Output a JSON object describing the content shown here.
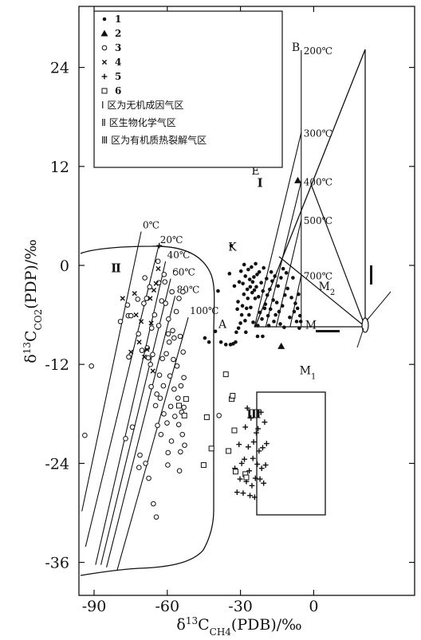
{
  "chart_data": {
    "type": "scatter",
    "xlabel": "δ13CCH4(PDB)/‰",
    "ylabel": "δ13CCO2(PDP)/‰",
    "x_ticks": [
      {
        "value": -90,
        "label": "-90"
      },
      {
        "value": -60,
        "label": "-60"
      },
      {
        "value": -30,
        "label": "-30"
      },
      {
        "value": 0,
        "label": "0"
      }
    ],
    "y_ticks": [
      {
        "value": 24,
        "label": "24"
      },
      {
        "value": 12,
        "label": "12"
      },
      {
        "value": 0,
        "label": "0"
      },
      {
        "value": -12,
        "label": "-12"
      },
      {
        "value": -24,
        "label": "-24"
      },
      {
        "value": -36,
        "label": "-36"
      }
    ],
    "xlim": [
      -95,
      5
    ],
    "ylim": [
      -38,
      28
    ],
    "legend": [
      {
        "num": "1",
        "marker": "dot",
        "text": ""
      },
      {
        "num": "2",
        "marker": "triangle",
        "text": ""
      },
      {
        "num": "3",
        "marker": "circle",
        "text": ""
      },
      {
        "num": "4",
        "marker": "x",
        "text": ""
      },
      {
        "num": "5",
        "marker": "plus",
        "text": ""
      },
      {
        "num": "6",
        "marker": "square",
        "text": ""
      },
      {
        "num": "",
        "marker": "region-1",
        "text": "Ⅰ 区为无机成因气区"
      },
      {
        "num": "",
        "marker": "region-2",
        "text": "Ⅱ 区生物化学气区"
      },
      {
        "num": "",
        "marker": "region-3",
        "text": "Ⅲ 区为有机质热裂解气区"
      }
    ],
    "region_labels": [
      {
        "text": "Ⅰ",
        "x": -22.0,
        "y": 9.5
      },
      {
        "text": "Ⅱ",
        "x": -81.0,
        "y": -0.8
      },
      {
        "text": "Ⅲ",
        "x": -24.5,
        "y": -18.5
      }
    ],
    "key_points": [
      {
        "name": "A",
        "label": "A",
        "x": -39.0,
        "y": -7.6
      },
      {
        "name": "K",
        "label": "K",
        "x": -35.0,
        "y": 1.8
      },
      {
        "name": "E",
        "label": "E",
        "x": -25.5,
        "y": 11.0
      },
      {
        "name": "B",
        "label": "B",
        "x": -9.0,
        "y": 26.0
      },
      {
        "name": "M",
        "label": "M",
        "x": -3.5,
        "y": -7.7
      },
      {
        "name": "M1",
        "label": "M1",
        "x": -5.8,
        "y": -13.2
      },
      {
        "name": "M2",
        "label": "M2",
        "x": 2.0,
        "y": -3.0
      }
    ],
    "inorganic_isotherms": [
      {
        "label": "200℃",
        "x1": -5.1,
        "y1": -7.5,
        "x2": -5.1,
        "y2": 26.1
      },
      {
        "label": "300℃",
        "x1": -24.3,
        "y1": -7.5,
        "x2": -5.1,
        "y2": 16.1
      },
      {
        "label": "400℃",
        "x1": -19.7,
        "y1": -7.5,
        "x2": -5.1,
        "y2": 10.2
      },
      {
        "label": "500℃",
        "x1": -15.4,
        "y1": -7.5,
        "x2": -5.1,
        "y2": 5.5
      },
      {
        "label": "700℃",
        "x1": -9.7,
        "y1": -7.5,
        "x2": -5.1,
        "y2": -1.2
      }
    ],
    "biogenic_isotherms": [
      {
        "label": "0℃",
        "x1": -95.0,
        "y1": -29.8,
        "x2": -70.7,
        "y2": 4.1
      },
      {
        "label": "20℃",
        "x1": -93.5,
        "y1": -34.1,
        "x2": -63.6,
        "y2": 2.3
      },
      {
        "label": "40℃",
        "x1": -89.4,
        "y1": -36.3,
        "x2": -60.7,
        "y2": 0.5
      },
      {
        "label": "60℃",
        "x1": -87.2,
        "y1": -36.3,
        "x2": -58.6,
        "y2": -1.6
      },
      {
        "label": "80℃",
        "x1": -84.9,
        "y1": -36.6,
        "x2": -56.8,
        "y2": -3.7
      },
      {
        "label": "100℃",
        "x1": -80.6,
        "y1": -37.0,
        "x2": -51.4,
        "y2": -6.3
      }
    ],
    "series": [
      {
        "marker": "dot",
        "points": [
          [
            -44.6,
            -8.8
          ],
          [
            -42.9,
            -9.3
          ],
          [
            -40.3,
            -8.0
          ],
          [
            -38.0,
            -9.3
          ],
          [
            -36.0,
            -9.6
          ],
          [
            -34.1,
            -9.6
          ],
          [
            -33.0,
            -9.5
          ],
          [
            -32.0,
            -9.3
          ],
          [
            -31.7,
            -8.1
          ],
          [
            -30.8,
            -7.6
          ],
          [
            -30.0,
            -7.0
          ],
          [
            -29.5,
            -6.0
          ],
          [
            -29.2,
            -4.9
          ],
          [
            -28.6,
            -3.5
          ],
          [
            -28.1,
            -6.7
          ],
          [
            -27.5,
            -5.2
          ],
          [
            -27.0,
            -4.0
          ],
          [
            -26.5,
            -6.0
          ],
          [
            -26.0,
            -2.6
          ],
          [
            -25.8,
            -5.1
          ],
          [
            -25.2,
            -3.3
          ],
          [
            -24.8,
            -6.9
          ],
          [
            -24.5,
            -1.4
          ],
          [
            -24.0,
            -4.0
          ],
          [
            -23.5,
            -2.6
          ],
          [
            -22.9,
            -7.3
          ],
          [
            -22.3,
            -0.8
          ],
          [
            -21.5,
            -2.1
          ],
          [
            -20.8,
            -3.1
          ],
          [
            -20.1,
            -5.2
          ],
          [
            -19.3,
            -1.6
          ],
          [
            -18.7,
            -6.1
          ],
          [
            -18.0,
            -2.9
          ],
          [
            -17.4,
            -0.8
          ],
          [
            -16.6,
            -4.2
          ],
          [
            -15.6,
            -6.0
          ],
          [
            -14.6,
            -2.5
          ],
          [
            -13.7,
            -7.1
          ],
          [
            -12.5,
            -0.4
          ],
          [
            -11.8,
            -3.6
          ],
          [
            -34.5,
            -1.0
          ],
          [
            -32.5,
            -2.5
          ],
          [
            -31.0,
            -4.4
          ],
          [
            -30.5,
            -2.0
          ],
          [
            -29.8,
            -0.7
          ],
          [
            -29.0,
            -2.2
          ],
          [
            -28.5,
            0.1
          ],
          [
            -28.0,
            -1.3
          ],
          [
            -27.2,
            -2.9
          ],
          [
            -26.8,
            -0.5
          ],
          [
            -26.2,
            -1.7
          ],
          [
            -25.5,
            -0.2
          ],
          [
            -25.0,
            -2.0
          ],
          [
            -24.3,
            -3.0
          ],
          [
            -23.8,
            0.2
          ],
          [
            -23.2,
            -1.1
          ],
          [
            -22.6,
            -3.8
          ],
          [
            -22.0,
            -5.7
          ],
          [
            -21.2,
            -6.5
          ],
          [
            -20.5,
            -0.3
          ],
          [
            -19.8,
            -4.7
          ],
          [
            -19.0,
            -3.6
          ],
          [
            -18.4,
            -7.3
          ],
          [
            -17.7,
            -5.3
          ],
          [
            -17.0,
            -1.9
          ],
          [
            -16.3,
            -6.8
          ],
          [
            -15.9,
            -1.3
          ],
          [
            -15.1,
            -4.5
          ],
          [
            -14.2,
            -5.6
          ],
          [
            -13.4,
            -1.5
          ],
          [
            -12.8,
            -4.9
          ],
          [
            -12.1,
            -7.5
          ],
          [
            -11.2,
            -0.9
          ],
          [
            -10.7,
            -2.8
          ],
          [
            -9.8,
            -6.3
          ],
          [
            -9.1,
            -3.9
          ],
          [
            -8.5,
            -1.5
          ],
          [
            -8.0,
            -5.6
          ],
          [
            -7.5,
            -4.6
          ],
          [
            -7.0,
            -6.8
          ],
          [
            -6.6,
            -5.2
          ],
          [
            -6.2,
            -3.5
          ],
          [
            -5.9,
            -7.6
          ],
          [
            -5.6,
            -6.1
          ],
          [
            -5.3,
            -6.8
          ],
          [
            -31.3,
            -5.3
          ],
          [
            -27.8,
            -8.1
          ],
          [
            -23.0,
            -8.6
          ],
          [
            -20.9,
            -8.6
          ],
          [
            -39.2,
            -3.1
          ],
          [
            -33.8,
            2.4
          ]
        ]
      },
      {
        "marker": "triangle",
        "points": [
          [
            -6.5,
            10.3
          ],
          [
            -13.3,
            -9.8
          ]
        ]
      },
      {
        "marker": "circle",
        "points": [
          [
            -93.8,
            -20.6
          ],
          [
            -91.1,
            -12.2
          ],
          [
            -79.2,
            -6.8
          ],
          [
            -77.1,
            -21.0
          ],
          [
            -76.3,
            -4.8
          ],
          [
            -76.0,
            -6.1
          ],
          [
            -75.8,
            -11.1
          ],
          [
            -74.9,
            -6.1
          ],
          [
            -74.3,
            -19.6
          ],
          [
            -72.1,
            -4.1
          ],
          [
            -71.8,
            -8.3
          ],
          [
            -71.6,
            -24.5
          ],
          [
            -71.2,
            -23.0
          ],
          [
            -70.4,
            -10.3
          ],
          [
            -69.6,
            -4.6
          ],
          [
            -69.2,
            -1.5
          ],
          [
            -68.9,
            -24.0
          ],
          [
            -68.5,
            -4.0
          ],
          [
            -68.2,
            -10.0
          ],
          [
            -67.8,
            -11.2
          ],
          [
            -67.6,
            -25.8
          ],
          [
            -67.2,
            -2.6
          ],
          [
            -66.9,
            -12.0
          ],
          [
            -66.6,
            -14.7
          ],
          [
            -66.4,
            -7.6
          ],
          [
            -66.0,
            -10.8
          ],
          [
            -65.7,
            -28.9
          ],
          [
            -65.2,
            -6.0
          ],
          [
            -64.8,
            -17.0
          ],
          [
            -64.5,
            -30.5
          ],
          [
            -64.3,
            -15.6
          ],
          [
            -64.0,
            -19.4
          ],
          [
            -63.8,
            0.5
          ],
          [
            -63.5,
            -2.1
          ],
          [
            -63.2,
            -13.3
          ],
          [
            -62.9,
            -16.1
          ],
          [
            -62.6,
            -20.5
          ],
          [
            -62.3,
            -4.3
          ],
          [
            -62.0,
            -11.3
          ],
          [
            -61.6,
            -14.6
          ],
          [
            -61.4,
            -18.0
          ],
          [
            -61.0,
            -2.0
          ],
          [
            -60.7,
            -4.6
          ],
          [
            -60.4,
            -10.7
          ],
          [
            -60.1,
            -19.1
          ],
          [
            -59.8,
            -24.2
          ],
          [
            -59.5,
            -6.5
          ],
          [
            -59.2,
            -9.3
          ],
          [
            -58.9,
            -13.4
          ],
          [
            -58.6,
            -17.1
          ],
          [
            -58.3,
            -21.3
          ],
          [
            -58.1,
            -3.2
          ],
          [
            -57.8,
            -7.9
          ],
          [
            -57.5,
            -11.4
          ],
          [
            -57.2,
            -15.0
          ],
          [
            -56.9,
            -18.3
          ],
          [
            -56.6,
            -0.9
          ],
          [
            -56.3,
            -5.6
          ],
          [
            -56.0,
            -12.2
          ],
          [
            -55.6,
            -16.1
          ],
          [
            -55.3,
            -19.3
          ],
          [
            -55.0,
            -24.9
          ],
          [
            -54.7,
            -8.6
          ],
          [
            -54.4,
            -14.6
          ],
          [
            -54.1,
            -17.8
          ],
          [
            -53.8,
            -20.5
          ],
          [
            -53.5,
            -10.5
          ],
          [
            -53.2,
            -17.2
          ],
          [
            -52.9,
            -21.8
          ],
          [
            -61.3,
            -1.1
          ],
          [
            -59.6,
            -8.3
          ],
          [
            -57.2,
            -8.8
          ],
          [
            -55.2,
            -4.0
          ],
          [
            -53.6,
            -3.2
          ],
          [
            -53.2,
            -13.6
          ],
          [
            -63.5,
            -7.3
          ],
          [
            -38.8,
            -18.2
          ],
          [
            -54.6,
            -22.6
          ],
          [
            -59.7,
            -22.7
          ]
        ]
      },
      {
        "marker": "x",
        "points": [
          [
            -78.3,
            -4.0
          ],
          [
            -74.9,
            -10.5
          ],
          [
            -72.8,
            -6.0
          ],
          [
            -71.5,
            -9.3
          ],
          [
            -70.7,
            -6.8
          ],
          [
            -69.4,
            -11.1
          ],
          [
            -68.3,
            -10.2
          ],
          [
            -67.0,
            -4.0
          ],
          [
            -65.9,
            -12.8
          ],
          [
            -65.5,
            -3.0
          ],
          [
            -64.6,
            -2.2
          ],
          [
            -63.7,
            -0.4
          ],
          [
            -73.4,
            -3.4
          ],
          [
            -66.6,
            -7.0
          ]
        ]
      },
      {
        "marker": "plus",
        "points": [
          [
            -63.3,
            2.4
          ],
          [
            -32.3,
            -24.6
          ],
          [
            -31.4,
            -27.5
          ],
          [
            -30.6,
            -21.7
          ],
          [
            -30.2,
            -25.9
          ],
          [
            -29.5,
            -24.0
          ],
          [
            -28.9,
            -27.6
          ],
          [
            -28.4,
            -23.5
          ],
          [
            -28.0,
            -19.6
          ],
          [
            -27.6,
            -26.2
          ],
          [
            -27.2,
            -17.3
          ],
          [
            -26.8,
            -22.0
          ],
          [
            -26.4,
            -24.9
          ],
          [
            -26.1,
            -27.9
          ],
          [
            -25.7,
            -18.5
          ],
          [
            -25.3,
            -26.7
          ],
          [
            -24.9,
            -23.4
          ],
          [
            -24.6,
            -21.4
          ],
          [
            -24.2,
            -28.1
          ],
          [
            -23.9,
            -25.8
          ],
          [
            -23.5,
            -20.3
          ],
          [
            -23.1,
            -24.1
          ],
          [
            -22.8,
            -19.8
          ],
          [
            -22.4,
            -22.5
          ],
          [
            -22.0,
            -25.9
          ],
          [
            -21.6,
            -17.8
          ],
          [
            -21.3,
            -24.6
          ],
          [
            -20.9,
            -22.1
          ],
          [
            -20.5,
            -26.4
          ],
          [
            -20.1,
            -19.0
          ],
          [
            -19.7,
            -24.2
          ],
          [
            -19.3,
            -21.6
          ]
        ]
      },
      {
        "marker": "square",
        "points": [
          [
            -33.6,
            -16.2
          ],
          [
            -33.2,
            -15.8
          ],
          [
            -32.5,
            -20.0
          ],
          [
            -32.0,
            -25.0
          ],
          [
            -34.9,
            -22.5
          ],
          [
            -28.0,
            -25.3
          ],
          [
            -36.0,
            -13.2
          ],
          [
            -27.6,
            -25.7
          ],
          [
            -43.8,
            -18.4
          ],
          [
            -45.1,
            -24.2
          ],
          [
            -41.9,
            -22.2
          ],
          [
            -52.3,
            -16.2
          ],
          [
            -53.0,
            -18.2
          ],
          [
            -55.2,
            -17.0
          ]
        ]
      }
    ]
  }
}
